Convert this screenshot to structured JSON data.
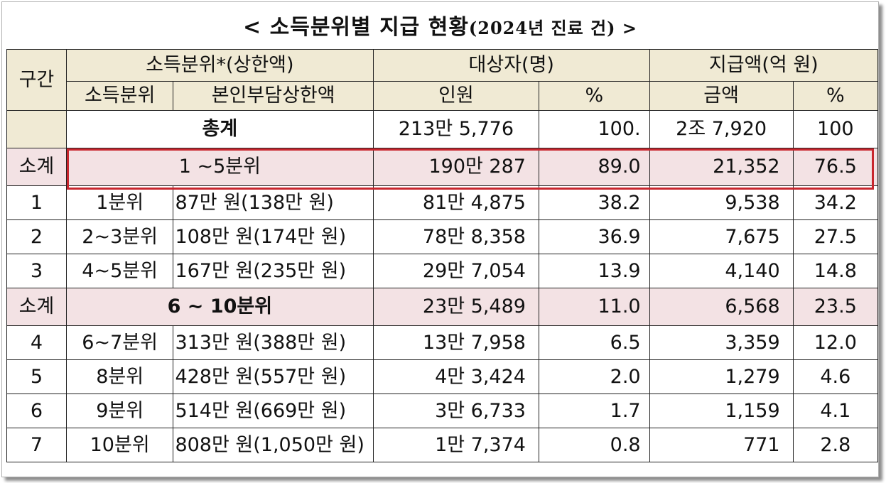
{
  "title": "< 소득분위별 지급 현황",
  "title_sub": "(2024년 진료 건) >",
  "headers": {
    "section": "구간",
    "income_group": "소득분위*(상한액)",
    "income_level": "소득분위",
    "copay_cap": "본인부담상한액",
    "recipients": "대상자(명)",
    "persons": "인원",
    "pct": "%",
    "payments": "지급액(억 원)",
    "amount": "금액"
  },
  "total": {
    "label": "총계",
    "persons": "213만 5,776",
    "persons_pct": "100.",
    "amount": "2조 7,920",
    "amount_pct": "100"
  },
  "subtotal1": {
    "label": "소계",
    "range": "1 ~5분위",
    "persons": "190만 287",
    "persons_pct": "89.0",
    "amount": "21,352",
    "amount_pct": "76.5"
  },
  "subtotal2": {
    "label": "소계",
    "range": "6 ~ 10분위",
    "persons": "23만 5,489",
    "persons_pct": "11.0",
    "amount": "6,568",
    "amount_pct": "23.5"
  },
  "rows": [
    {
      "sec": "1",
      "level": "1분위",
      "cap": "87만 원(138만 원)",
      "persons": "81만 4,875",
      "persons_pct": "38.2",
      "amount": "9,538",
      "amount_pct": "34.2"
    },
    {
      "sec": "2",
      "level": "2~3분위",
      "cap": "108만 원(174만 원)",
      "persons": "78만 8,358",
      "persons_pct": "36.9",
      "amount": "7,675",
      "amount_pct": "27.5"
    },
    {
      "sec": "3",
      "level": "4~5분위",
      "cap": "167만 원(235만 원)",
      "persons": "29만 7,054",
      "persons_pct": "13.9",
      "amount": "4,140",
      "amount_pct": "14.8"
    },
    {
      "sec": "4",
      "level": "6~7분위",
      "cap": "313만 원(388만 원)",
      "persons": "13만 7,958",
      "persons_pct": "6.5",
      "amount": "3,359",
      "amount_pct": "12.0"
    },
    {
      "sec": "5",
      "level": "8분위",
      "cap": "428만 원(557만 원)",
      "persons": "4만 3,424",
      "persons_pct": "2.0",
      "amount": "1,279",
      "amount_pct": "4.6"
    },
    {
      "sec": "6",
      "level": "9분위",
      "cap": "514만 원(669만 원)",
      "persons": "3만 6,733",
      "persons_pct": "1.7",
      "amount": "1,159",
      "amount_pct": "4.1"
    },
    {
      "sec": "7",
      "level": "10분위",
      "cap": "808만 원(1,050만 원)",
      "persons": "1만 7,374",
      "persons_pct": "0.8",
      "amount": "771",
      "amount_pct": "2.8"
    }
  ],
  "colors": {
    "header_bg": "#f0ead4",
    "subtotal_bg": "#f3e2e4",
    "highlight_border": "#c8262e"
  }
}
